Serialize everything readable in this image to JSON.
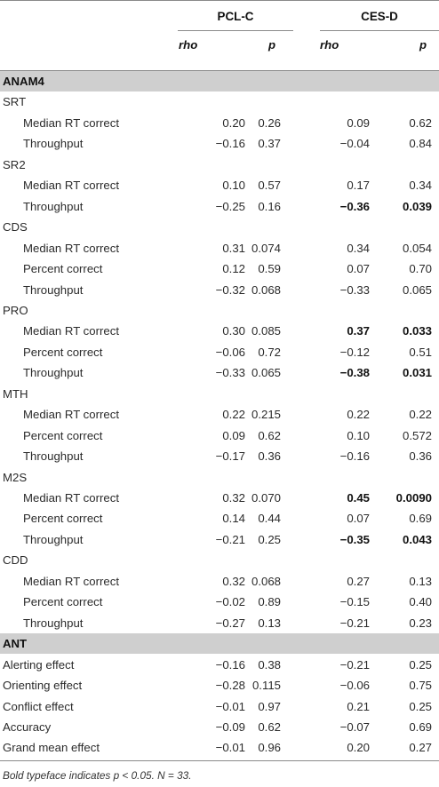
{
  "header": {
    "groups": [
      "PCL-C",
      "CES-D"
    ],
    "subheaders": [
      "rho",
      "p",
      "rho",
      "p"
    ]
  },
  "rows": [
    {
      "type": "section",
      "label": "ANAM4"
    },
    {
      "type": "group",
      "label": "SRT"
    },
    {
      "type": "data",
      "label": "Median RT correct",
      "vals": [
        "0.20",
        "0.26",
        "0.09",
        "0.62"
      ],
      "bold": [
        false,
        false,
        false,
        false
      ]
    },
    {
      "type": "data",
      "label": "Throughput",
      "vals": [
        "−0.16",
        "0.37",
        "−0.04",
        "0.84"
      ],
      "bold": [
        false,
        false,
        false,
        false
      ]
    },
    {
      "type": "group",
      "label": "SR2"
    },
    {
      "type": "data",
      "label": "Median RT correct",
      "vals": [
        "0.10",
        "0.57",
        "0.17",
        "0.34"
      ],
      "bold": [
        false,
        false,
        false,
        false
      ]
    },
    {
      "type": "data",
      "label": "Throughput",
      "vals": [
        "−0.25",
        "0.16",
        "−0.36",
        "0.039"
      ],
      "bold": [
        false,
        false,
        true,
        true
      ]
    },
    {
      "type": "group",
      "label": "CDS"
    },
    {
      "type": "data",
      "label": "Median RT correct",
      "vals": [
        "0.31",
        "0.074",
        "0.34",
        "0.054"
      ],
      "bold": [
        false,
        false,
        false,
        false
      ]
    },
    {
      "type": "data",
      "label": "Percent correct",
      "vals": [
        "0.12",
        "0.59",
        "0.07",
        "0.70"
      ],
      "bold": [
        false,
        false,
        false,
        false
      ]
    },
    {
      "type": "data",
      "label": "Throughput",
      "vals": [
        "−0.32",
        "0.068",
        "−0.33",
        "0.065"
      ],
      "bold": [
        false,
        false,
        false,
        false
      ]
    },
    {
      "type": "group",
      "label": "PRO"
    },
    {
      "type": "data",
      "label": "Median RT correct",
      "vals": [
        "0.30",
        "0.085",
        "0.37",
        "0.033"
      ],
      "bold": [
        false,
        false,
        true,
        true
      ]
    },
    {
      "type": "data",
      "label": "Percent correct",
      "vals": [
        "−0.06",
        "0.72",
        "−0.12",
        "0.51"
      ],
      "bold": [
        false,
        false,
        false,
        false
      ]
    },
    {
      "type": "data",
      "label": "Throughput",
      "vals": [
        "−0.33",
        "0.065",
        "−0.38",
        "0.031"
      ],
      "bold": [
        false,
        false,
        true,
        true
      ]
    },
    {
      "type": "group",
      "label": "MTH"
    },
    {
      "type": "data",
      "label": "Median RT correct",
      "vals": [
        "0.22",
        "0.215",
        "0.22",
        "0.22"
      ],
      "bold": [
        false,
        false,
        false,
        false
      ]
    },
    {
      "type": "data",
      "label": "Percent correct",
      "vals": [
        "0.09",
        "0.62",
        "0.10",
        "0.572"
      ],
      "bold": [
        false,
        false,
        false,
        false
      ]
    },
    {
      "type": "data",
      "label": "Throughput",
      "vals": [
        "−0.17",
        "0.36",
        "−0.16",
        "0.36"
      ],
      "bold": [
        false,
        false,
        false,
        false
      ]
    },
    {
      "type": "group",
      "label": "M2S"
    },
    {
      "type": "data",
      "label": "Median RT correct",
      "vals": [
        "0.32",
        "0.070",
        "0.45",
        "0.0090"
      ],
      "bold": [
        false,
        false,
        true,
        true
      ]
    },
    {
      "type": "data",
      "label": "Percent correct",
      "vals": [
        "0.14",
        "0.44",
        "0.07",
        "0.69"
      ],
      "bold": [
        false,
        false,
        false,
        false
      ]
    },
    {
      "type": "data",
      "label": "Throughput",
      "vals": [
        "−0.21",
        "0.25",
        "−0.35",
        "0.043"
      ],
      "bold": [
        false,
        false,
        true,
        true
      ]
    },
    {
      "type": "group",
      "label": "CDD"
    },
    {
      "type": "data",
      "label": "Median RT correct",
      "vals": [
        "0.32",
        "0.068",
        "0.27",
        "0.13"
      ],
      "bold": [
        false,
        false,
        false,
        false
      ]
    },
    {
      "type": "data",
      "label": "Percent correct",
      "vals": [
        "−0.02",
        "0.89",
        "−0.15",
        "0.40"
      ],
      "bold": [
        false,
        false,
        false,
        false
      ]
    },
    {
      "type": "data",
      "label": "Throughput",
      "vals": [
        "−0.27",
        "0.13",
        "−0.21",
        "0.23"
      ],
      "bold": [
        false,
        false,
        false,
        false
      ]
    },
    {
      "type": "section",
      "label": "ANT"
    },
    {
      "type": "top",
      "label": "Alerting effect",
      "vals": [
        "−0.16",
        "0.38",
        "−0.21",
        "0.25"
      ],
      "bold": [
        false,
        false,
        false,
        false
      ]
    },
    {
      "type": "top",
      "label": "Orienting effect",
      "vals": [
        "−0.28",
        "0.115",
        "−0.06",
        "0.75"
      ],
      "bold": [
        false,
        false,
        false,
        false
      ]
    },
    {
      "type": "top",
      "label": "Conflict effect",
      "vals": [
        "−0.01",
        "0.97",
        "0.21",
        "0.25"
      ],
      "bold": [
        false,
        false,
        false,
        false
      ]
    },
    {
      "type": "top",
      "label": "Accuracy",
      "vals": [
        "−0.09",
        "0.62",
        "−0.07",
        "0.69"
      ],
      "bold": [
        false,
        false,
        false,
        false
      ]
    },
    {
      "type": "top",
      "label": "Grand mean effect",
      "vals": [
        "−0.01",
        "0.96",
        "0.20",
        "0.27"
      ],
      "bold": [
        false,
        false,
        false,
        false
      ]
    }
  ],
  "footnote": "Bold typeface indicates p < 0.05. N = 33."
}
